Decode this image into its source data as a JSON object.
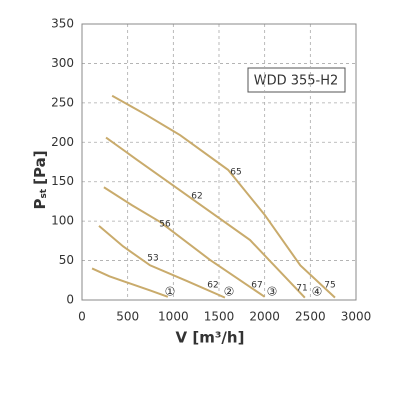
{
  "chart_data": {
    "type": "line",
    "model_label": "WDD 355-H2",
    "xlabel": "V [m³/h]",
    "ylabel": "P",
    "ylabel_sub": "st",
    "ylabel_unit": "[Pa]",
    "xlim": [
      0,
      3000
    ],
    "xticks": [
      0,
      500,
      1000,
      1500,
      2000,
      2500,
      3000
    ],
    "ylim": [
      0,
      350
    ],
    "yticks": [
      0,
      50,
      100,
      150,
      200,
      250,
      300,
      350
    ],
    "grid": true,
    "color": "#c9ab6c",
    "series": [
      {
        "x": [
          110,
          300,
          525,
          750,
          940
        ],
        "values": [
          40,
          30,
          21,
          12,
          4
        ]
      },
      {
        "x": [
          186,
          450,
          745,
          1150,
          1565
        ],
        "values": [
          94,
          68,
          44,
          24,
          3
        ]
      },
      {
        "x": [
          240,
          550,
          855,
          1400,
          2000
        ],
        "values": [
          143,
          120,
          99,
          51,
          4
        ]
      },
      {
        "x": [
          263,
          600,
          965,
          1840,
          2440
        ],
        "values": [
          206,
          178,
          148,
          76,
          3
        ]
      },
      {
        "x": [
          330,
          700,
          1075,
          1600,
          2000,
          2390,
          2770
        ],
        "values": [
          259,
          235,
          209,
          165,
          108,
          44,
          3
        ]
      }
    ],
    "annotations": [
      "65",
      "62",
      "56",
      "53",
      "62",
      "67",
      "71",
      "75",
      "①",
      "②",
      "③",
      "④"
    ]
  }
}
